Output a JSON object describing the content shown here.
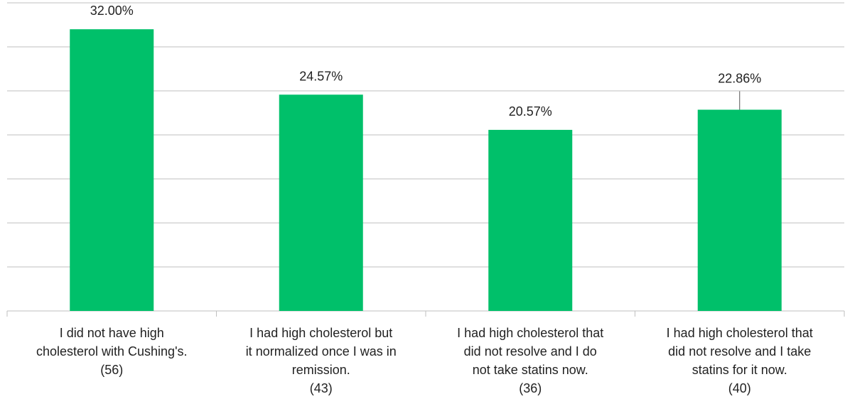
{
  "chart_data": {
    "type": "bar",
    "categories": [
      "I did not have high\ncholesterol with Cushing's.\n(56)",
      "I had high cholesterol but\nit normalized once I was in\nremission.\n(43)",
      "I had high cholesterol that\ndid not resolve and I do\nnot take statins now.\n(36)",
      "I had high cholesterol that\ndid not resolve and I take\nstatins for it now.\n(40)"
    ],
    "values": [
      32.0,
      24.57,
      20.57,
      22.86
    ],
    "value_labels": [
      "32.00%",
      "24.57%",
      "20.57%",
      "22.86%"
    ],
    "color": "#00c06a",
    "ylim": [
      0,
      35
    ],
    "yticks": [
      0,
      5,
      10,
      15,
      20,
      25,
      30,
      35
    ],
    "grid": true
  }
}
